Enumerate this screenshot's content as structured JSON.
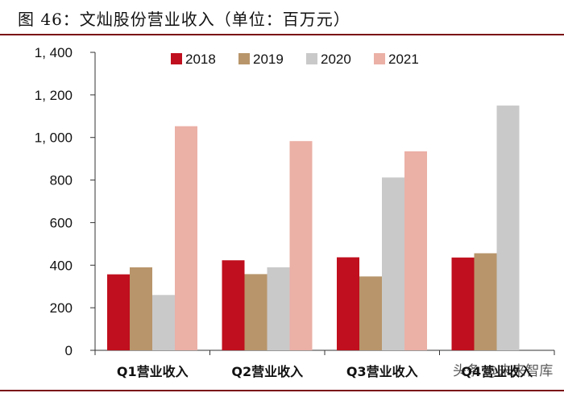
{
  "title": "图 46：文灿股份营业收入（单位：百万元）",
  "chart_data": {
    "type": "bar",
    "categories": [
      "Q1营业收入",
      "Q2营业收入",
      "Q3营业收入",
      "Q4营业收入"
    ],
    "series": [
      {
        "name": "2018",
        "color": "#c00f1e",
        "values": [
          357,
          423,
          437,
          436
        ]
      },
      {
        "name": "2019",
        "color": "#b8956b",
        "values": [
          390,
          358,
          347,
          456
        ]
      },
      {
        "name": "2020",
        "color": "#c9c9c9",
        "values": [
          260,
          390,
          812,
          1150
        ]
      },
      {
        "name": "2021",
        "color": "#ebb0a6",
        "values": [
          1053,
          983,
          935,
          null
        ]
      }
    ],
    "ylim": [
      0,
      1400
    ],
    "yticks": [
      0,
      200,
      400,
      600,
      800,
      1000,
      1200,
      1400
    ],
    "ytick_labels": [
      "0",
      "200",
      "400",
      "600",
      "800",
      "1, 000",
      "1, 200",
      "1, 400"
    ],
    "legend_position": "top-center",
    "grid": false,
    "xlabel": "",
    "ylabel": ""
  },
  "watermark": "头条 @未来智库"
}
